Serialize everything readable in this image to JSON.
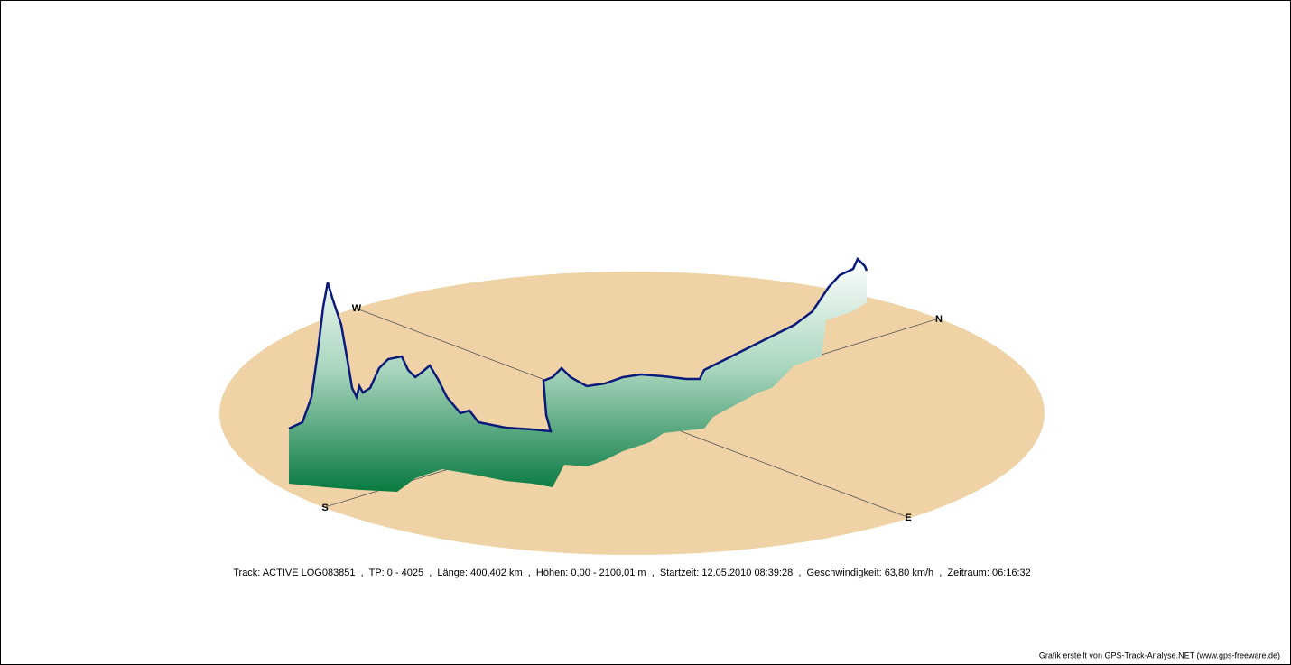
{
  "compass": {
    "west": "W",
    "north": "N",
    "south": "S",
    "east": "E"
  },
  "info": "Track: ACTIVE LOG083851  ,  TP: 0 - 4025  ,  Länge: 400,402 km  ,  Höhen: 0,00 - 2100,01 m  ,  Startzeit: 12.05.2010 08:39:28  ,  Geschwindigkeit: 63,80 km/h  ,  Zeitraum: 06:16:32",
  "credit": "Grafik erstellt von GPS-Track-Analyse.NET (www.gps-freeware.de)"
}
